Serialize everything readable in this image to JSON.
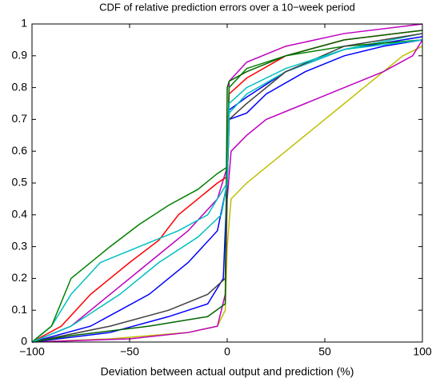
{
  "chart_data": {
    "type": "line",
    "title": "CDF of relative prediction errors over a 10−week period",
    "x_label": "Deviation between actual output and prediction (%)",
    "xlim": [
      -100,
      100
    ],
    "xticks": [
      {
        "value": -100,
        "label": "−100"
      },
      {
        "value": -50,
        "label": "−50"
      },
      0,
      50,
      100
    ],
    "ylim": [
      0,
      1
    ],
    "yticks": [
      0,
      0.1,
      0.2,
      0.3,
      0.4,
      0.5,
      0.6,
      0.7,
      0.8,
      0.9,
      1
    ],
    "series": [
      {
        "color": "#bfbf00",
        "x": [
          -100,
          -60,
          -20,
          -5,
          -1,
          0,
          2,
          10,
          20,
          30,
          40,
          50,
          60,
          70,
          80,
          90,
          100
        ],
        "values": [
          0,
          0.01,
          0.03,
          0.05,
          0.1,
          0.3,
          0.45,
          0.5,
          0.55,
          0.6,
          0.65,
          0.7,
          0.75,
          0.8,
          0.85,
          0.9,
          0.93
        ]
      },
      {
        "color": "#bf00bf",
        "x": [
          -100,
          -50,
          -20,
          -5,
          -1,
          0,
          2,
          10,
          20,
          40,
          60,
          80,
          95,
          100
        ],
        "values": [
          0,
          0.01,
          0.03,
          0.05,
          0.15,
          0.45,
          0.6,
          0.65,
          0.7,
          0.75,
          0.8,
          0.85,
          0.9,
          0.95
        ]
      },
      {
        "color": "#bf00bf",
        "x": [
          -100,
          -80,
          -60,
          -40,
          -20,
          -5,
          0,
          1,
          10,
          30,
          60,
          100
        ],
        "values": [
          0,
          0.05,
          0.15,
          0.25,
          0.35,
          0.45,
          0.55,
          0.82,
          0.88,
          0.93,
          0.97,
          1
        ]
      },
      {
        "color": "#0000ff",
        "x": [
          -100,
          -60,
          -30,
          -10,
          -2,
          0,
          1,
          10,
          20,
          40,
          60,
          80,
          100
        ],
        "values": [
          0,
          0.03,
          0.08,
          0.12,
          0.2,
          0.5,
          0.7,
          0.72,
          0.78,
          0.85,
          0.9,
          0.93,
          0.95
        ]
      },
      {
        "color": "#0000ff",
        "x": [
          -100,
          -70,
          -40,
          -20,
          -5,
          0,
          1,
          10,
          30,
          60,
          100
        ],
        "values": [
          0,
          0.05,
          0.15,
          0.25,
          0.35,
          0.5,
          0.73,
          0.77,
          0.85,
          0.92,
          0.96
        ]
      },
      {
        "color": "#ff0000",
        "x": [
          -100,
          -85,
          -70,
          -50,
          -35,
          -25,
          -15,
          -5,
          0,
          1,
          10,
          30,
          60,
          100
        ],
        "values": [
          0,
          0.05,
          0.15,
          0.25,
          0.32,
          0.4,
          0.45,
          0.5,
          0.52,
          0.78,
          0.83,
          0.9,
          0.95,
          0.98
        ]
      },
      {
        "color": "#00bfbf",
        "x": [
          -100,
          -90,
          -80,
          -65,
          -45,
          -25,
          -10,
          0,
          1,
          10,
          30,
          60,
          100
        ],
        "values": [
          0,
          0.05,
          0.15,
          0.25,
          0.3,
          0.35,
          0.4,
          0.5,
          0.72,
          0.78,
          0.85,
          0.92,
          0.97
        ]
      },
      {
        "color": "#008000",
        "x": [
          -100,
          -90,
          -80,
          -60,
          -45,
          -30,
          -15,
          -5,
          0,
          1,
          10,
          30,
          60,
          100
        ],
        "values": [
          0,
          0.05,
          0.2,
          0.3,
          0.37,
          0.43,
          0.48,
          0.53,
          0.55,
          0.8,
          0.86,
          0.9,
          0.93,
          0.95
        ]
      },
      {
        "color": "#404040",
        "x": [
          -100,
          -60,
          -30,
          -10,
          -1,
          0,
          1,
          10,
          30,
          60,
          100
        ],
        "values": [
          0,
          0.05,
          0.1,
          0.15,
          0.2,
          0.5,
          0.7,
          0.75,
          0.85,
          0.93,
          0.97
        ]
      },
      {
        "color": "#006400",
        "x": [
          -100,
          -80,
          -40,
          -10,
          -1,
          0,
          1,
          10,
          30,
          60,
          100
        ],
        "values": [
          0,
          0.02,
          0.05,
          0.08,
          0.12,
          0.8,
          0.82,
          0.85,
          0.9,
          0.95,
          0.98
        ]
      },
      {
        "color": "#00bfbf",
        "x": [
          -100,
          -80,
          -55,
          -35,
          -15,
          -3,
          0,
          1,
          10,
          30,
          60,
          100
        ],
        "values": [
          0,
          0.05,
          0.15,
          0.25,
          0.33,
          0.4,
          0.5,
          0.75,
          0.8,
          0.86,
          0.92,
          0.95
        ]
      }
    ]
  }
}
